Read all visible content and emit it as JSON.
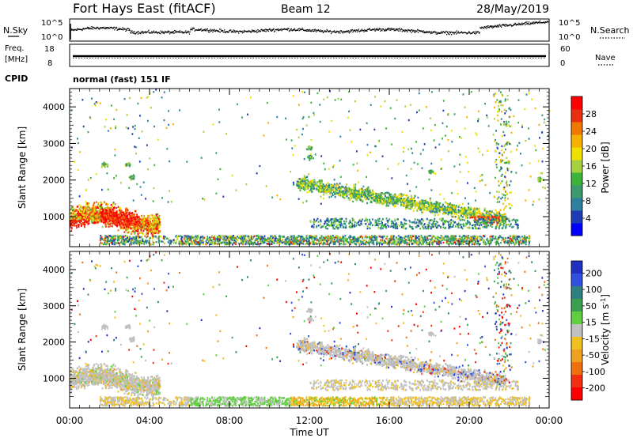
{
  "header": {
    "station": "Fort Hays East (fitACF)",
    "beam": "Beam 12",
    "date": "28/May/2019"
  },
  "status_panels": {
    "nsky_label": "N.Sky",
    "nsearch_label": "N.Search",
    "noise_ticks": [
      "10^5",
      "10^0"
    ],
    "freq_label_top": "Freq.",
    "freq_label_unit": "[MHz]",
    "freq_ticks": [
      "18",
      "8"
    ],
    "nave_label": "Nave",
    "nave_ticks": [
      "60",
      "0"
    ],
    "cpid_label": "CPID",
    "cpid_value": "normal (fast) 151 IF"
  },
  "chart_data": [
    {
      "type": "heatmap",
      "name": "power",
      "ylabel": "Slant Range [km]",
      "xlabel": "",
      "yticks": [
        "1000",
        "2000",
        "3000",
        "4000"
      ],
      "ylim": [
        180,
        4500
      ],
      "xlim_hours": [
        0,
        24
      ],
      "colorbar": {
        "label": "Power [dB]",
        "ticks": [
          "4",
          "8",
          "12",
          "16",
          "20",
          "24",
          "28"
        ],
        "range": [
          0,
          32
        ],
        "colors": [
          "#0000ff",
          "#1e3cb4",
          "#2f7fa0",
          "#3c9a6e",
          "#3cb43c",
          "#a5d040",
          "#f0e000",
          "#f5b000",
          "#f07800",
          "#e83010",
          "#ff0000"
        ]
      }
    },
    {
      "type": "heatmap",
      "name": "velocity",
      "ylabel": "Slant Range [km]",
      "xlabel": "Time UT",
      "yticks": [
        "1000",
        "2000",
        "3000",
        "4000"
      ],
      "xticks": [
        "00:00",
        "04:00",
        "08:00",
        "12:00",
        "16:00",
        "20:00",
        "00:00"
      ],
      "ylim": [
        180,
        4500
      ],
      "xlim_hours": [
        0,
        24
      ],
      "colorbar": {
        "label": "Velocity [m s^-1]",
        "ticks": [
          "200",
          "100",
          "50",
          "15",
          "-15",
          "-50",
          "-100",
          "-200"
        ],
        "colors": [
          "#2030c0",
          "#3050e0",
          "#2f7f7f",
          "#3aa050",
          "#60d040",
          "#c0c0c0",
          "#f0c020",
          "#f0a020",
          "#f07010",
          "#f03010",
          "#ff0000"
        ]
      }
    }
  ]
}
